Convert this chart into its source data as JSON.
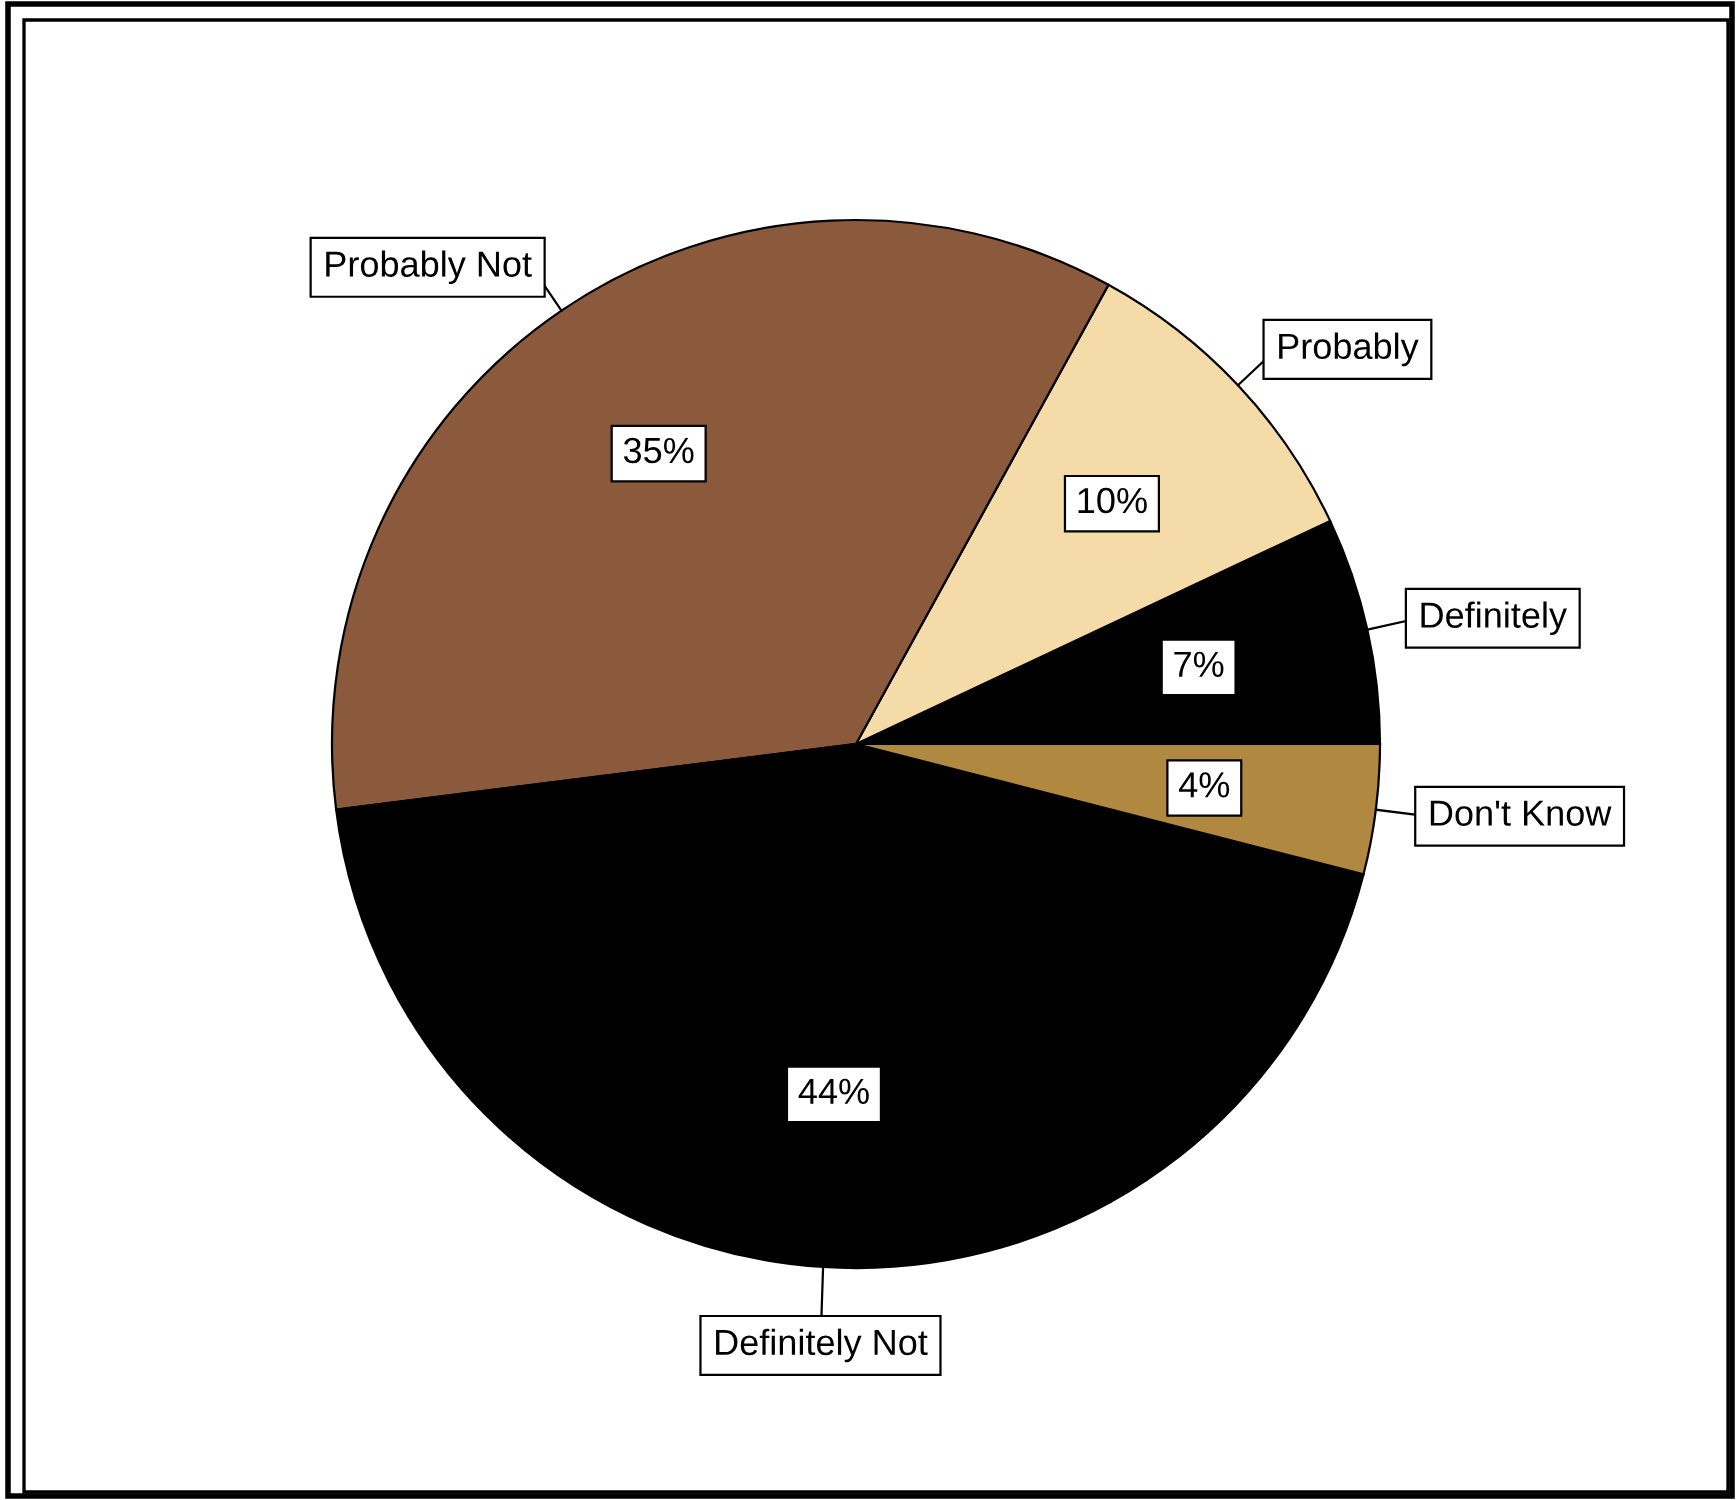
{
  "chart_data": {
    "type": "pie",
    "categories": [
      "Definitely",
      "Probably",
      "Probably Not",
      "Definitely Not",
      "Don't Know"
    ],
    "values": [
      7,
      10,
      35,
      44,
      4
    ],
    "value_labels": [
      "7%",
      "10%",
      "35%",
      "44%",
      "4%"
    ],
    "colors": [
      "#000000",
      "#f5dba8",
      "#8b5a3c",
      "#000000",
      "#b08840"
    ],
    "legend": false
  }
}
